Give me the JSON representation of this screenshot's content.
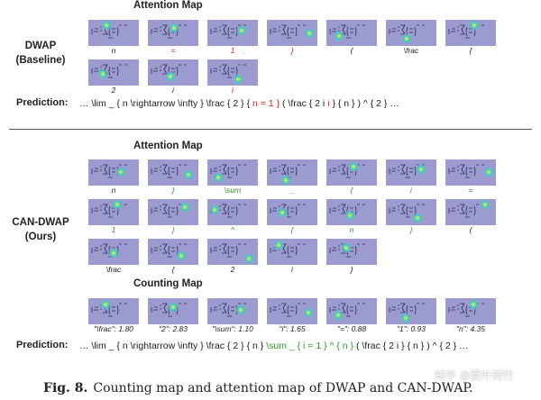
{
  "baseline": {
    "attention_title": "Attention Map",
    "name_lines": [
      "DWAP",
      "(Baseline)"
    ],
    "attention": [
      {
        "label": "n",
        "color": "#222222"
      },
      {
        "label": "=",
        "color": "#e0201a"
      },
      {
        "label": "1",
        "color": "#e0201a"
      },
      {
        "label": "}",
        "color": "#e0201a"
      },
      {
        "label": "(",
        "color": "#222222"
      },
      {
        "label": "\\frac",
        "color": "#222222"
      },
      {
        "label": "{",
        "color": "#222222"
      },
      {
        "label": "2",
        "color": "#222222"
      },
      {
        "label": "i",
        "color": "#222222"
      },
      {
        "label": "i",
        "color": "#e0201a"
      }
    ],
    "prediction_label": "Prediction:",
    "prediction": [
      {
        "text": "… \\lim _ { n \\rightarrow \\infty } \\frac { 2 } { ",
        "color": "#222222"
      },
      {
        "text": "n = 1 }",
        "color": "#e0201a"
      },
      {
        "text": " ( \\frac { 2 i ",
        "color": "#222222"
      },
      {
        "text": "i",
        "color": "#e0201a"
      },
      {
        "text": " } { n } ) ^ { 2 } …",
        "color": "#222222"
      }
    ]
  },
  "ours": {
    "attention_title": "Attention Map",
    "name_lines": [
      "CAN-DWAP",
      "(Ours)"
    ],
    "attention": [
      {
        "label": "n",
        "color": "#222222"
      },
      {
        "label": "}",
        "color": "#2a9a2a"
      },
      {
        "label": "\\sum",
        "color": "#2a9a2a"
      },
      {
        "label": "_",
        "color": "#2a9a2a"
      },
      {
        "label": "{",
        "color": "#2a9a2a"
      },
      {
        "label": "i",
        "color": "#2a9a2a"
      },
      {
        "label": "=",
        "color": "#2a9a2a"
      },
      {
        "label": "1",
        "color": "#2a9a2a"
      },
      {
        "label": "}",
        "color": "#2a9a2a"
      },
      {
        "label": "^",
        "color": "#2a9a2a"
      },
      {
        "label": "{",
        "color": "#2a9a2a"
      },
      {
        "label": "n",
        "color": "#2a9a2a"
      },
      {
        "label": "}",
        "color": "#2a9a2a"
      },
      {
        "label": "(",
        "color": "#222222"
      },
      {
        "label": "\\frac",
        "color": "#222222"
      },
      {
        "label": "{",
        "color": "#222222"
      },
      {
        "label": "2",
        "color": "#222222"
      },
      {
        "label": "i",
        "color": "#222222"
      },
      {
        "label": "}",
        "color": "#222222"
      }
    ],
    "counting_title": "Counting Map",
    "counting": [
      {
        "label": "\"\\frac\": 1.80",
        "color": "#222222"
      },
      {
        "label": "\"2\": 2.83",
        "color": "#222222"
      },
      {
        "label": "\"\\sum\": 1.10",
        "color": "#222222"
      },
      {
        "label": "\"i\": 1.65",
        "color": "#222222"
      },
      {
        "label": "\"=\": 0.88",
        "color": "#222222"
      },
      {
        "label": "\"1\": 0.93",
        "color": "#222222"
      },
      {
        "label": "\"n\": 4.35",
        "color": "#222222"
      }
    ],
    "prediction_label": "Prediction:",
    "prediction": [
      {
        "text": "… \\lim _ { n \\rightarrow \\infty } \\frac { 2 } { n } ",
        "color": "#222222"
      },
      {
        "text": "\\sum _ { i = 1 } ^ { n }",
        "color": "#2a9a2a"
      },
      {
        "text": " ( \\frac { 2 i } { n } ) ^ { 2 } …",
        "color": "#222222"
      }
    ]
  },
  "caption": {
    "label": "Fig. 8.",
    "text": "Counting map and attention map of DWAP and CAN-DWAP."
  },
  "watermark": "知乎 @夏叶何竹"
}
